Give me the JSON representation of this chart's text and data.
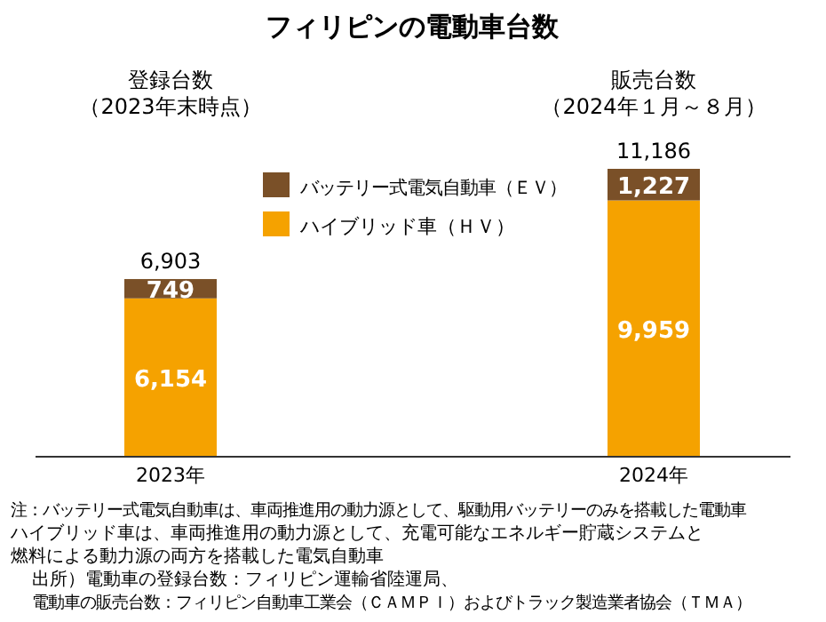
{
  "chart_data": {
    "type": "bar",
    "title": "フィリピンの電動車台数",
    "stacked": true,
    "legend": "top",
    "categories": [
      "2023年",
      "2024年"
    ],
    "series": [
      {
        "name": "ハイブリッド車（ＨＶ）",
        "color": "#f5a200",
        "values": [
          6154,
          9959
        ],
        "value_labels": [
          "6,154",
          "9,959"
        ]
      },
      {
        "name": "バッテリー式電気自動車（ＥＶ）",
        "color": "#7a5028",
        "values": [
          749,
          1227
        ],
        "value_labels": [
          "749",
          "1,227"
        ]
      }
    ],
    "totals": [
      "6,903",
      "11,186"
    ],
    "annotations": [
      "登録台数",
      "（2023年末時点）",
      "販売台数",
      "（2024年１月～８月）",
      "注：バッテリー式電気自動車は、車両推進用の動力源として、駆動用バッテリーのみを搭載した電動車",
      "ハイブリッド車は、車両推進用の動力源として、充電可能なエネルギー貯蔵システムと",
      "燃料による動力源の両方を搭載した電気自動車",
      "出所）電動車の登録台数：フィリピン運輸省陸運局、",
      "電動車の販売台数：フィリピン自動車工業会（ＣＡＭＰＩ）およびトラック製造業者協会（ＴＭＡ）"
    ]
  }
}
